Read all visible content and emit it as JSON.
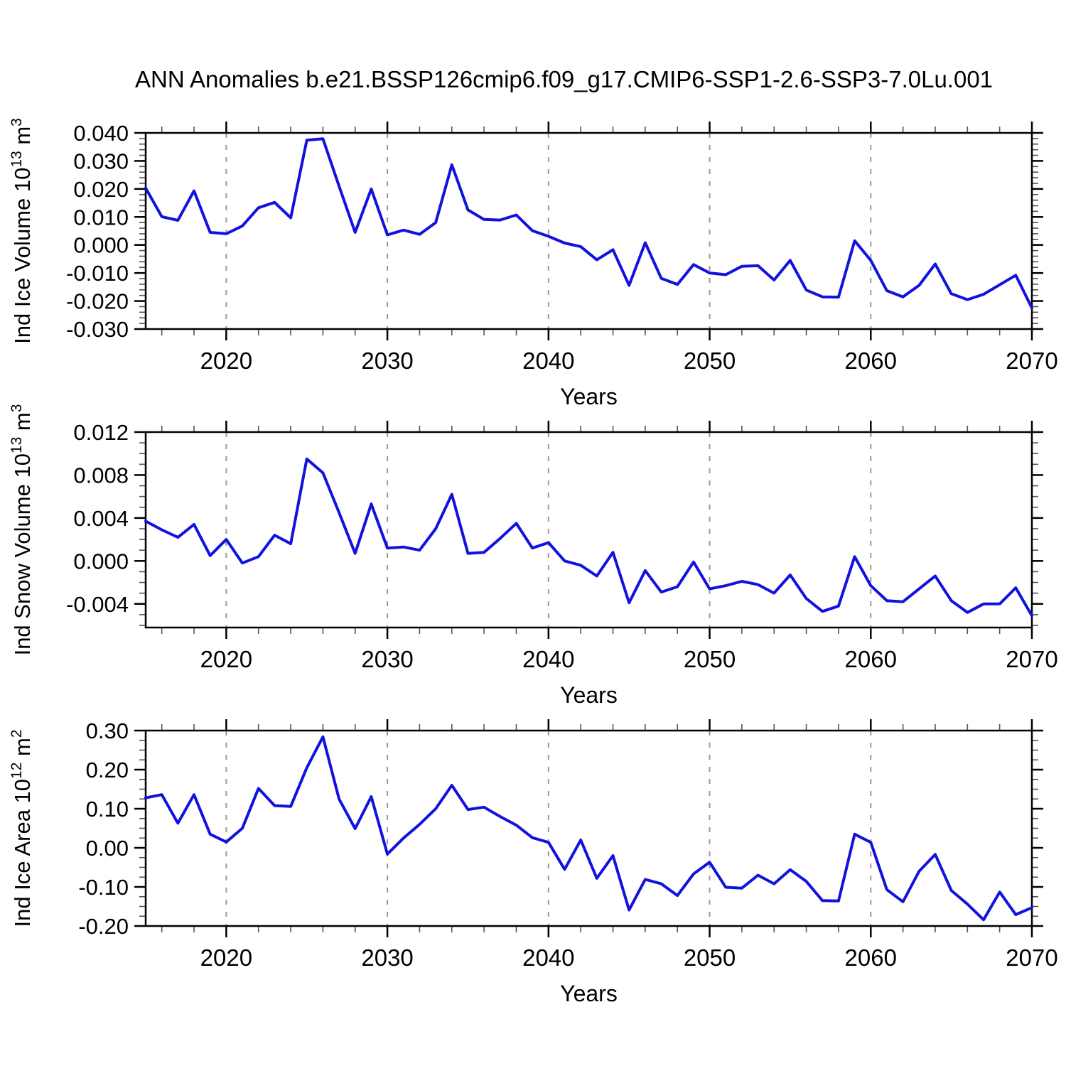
{
  "title": "ANN Anomalies b.e21.BSSP126cmip6.f09_g17.CMIP6-SSP1-2.6-SSP3-7.0Lu.001",
  "chart_data": {
    "type": "line",
    "line_color": "#1212e0",
    "grid_color": "#999999",
    "x": {
      "label": "Years",
      "min": 2015,
      "max": 2070,
      "major_ticks": [
        2020,
        2030,
        2040,
        2050,
        2060,
        2070
      ],
      "tick_labels": [
        "2020",
        "2030",
        "2040",
        "2050",
        "2060",
        "2070"
      ],
      "minor_step": 2,
      "gridlines": [
        2020,
        2030,
        2040,
        2050,
        2060
      ]
    },
    "years": [
      2015,
      2016,
      2017,
      2018,
      2019,
      2020,
      2021,
      2022,
      2023,
      2024,
      2025,
      2026,
      2027,
      2028,
      2029,
      2030,
      2031,
      2032,
      2033,
      2034,
      2035,
      2036,
      2037,
      2038,
      2039,
      2040,
      2041,
      2042,
      2043,
      2044,
      2045,
      2046,
      2047,
      2048,
      2049,
      2050,
      2051,
      2052,
      2053,
      2054,
      2055,
      2056,
      2057,
      2058,
      2059,
      2060,
      2061,
      2062,
      2063,
      2064,
      2065,
      2066,
      2067,
      2068,
      2069,
      2070
    ],
    "panels": [
      {
        "id": "ice-volume",
        "ylabel_plain": "Ind Ice Volume 10^13 m^3",
        "ylabel_parts": [
          {
            "t": "Ind Ice Volume 10",
            "sup": false
          },
          {
            "t": "13",
            "sup": true
          },
          {
            "t": " m",
            "sup": false
          },
          {
            "t": "3",
            "sup": true
          }
        ],
        "xlabel": "Years",
        "ymin": -0.03,
        "ymax": 0.04,
        "ytick_values": [
          0.04,
          0.03,
          0.02,
          0.01,
          0.0,
          -0.01,
          -0.02,
          -0.03
        ],
        "ytick_labels": [
          "0.040",
          "0.030",
          "0.020",
          "0.010",
          "0.000",
          "-0.010",
          "-0.020",
          "-0.030"
        ],
        "yminor_step": 0.002,
        "values": [
          0.0203,
          0.0101,
          0.0088,
          0.0193,
          0.0045,
          0.004,
          0.0068,
          0.0133,
          0.0152,
          0.0097,
          0.0374,
          0.0379,
          0.021,
          0.0045,
          0.02,
          0.0036,
          0.0053,
          0.0038,
          0.008,
          0.0286,
          0.0125,
          0.0091,
          0.0089,
          0.0107,
          0.0051,
          0.0031,
          0.0007,
          -0.0006,
          -0.0053,
          -0.0017,
          -0.0144,
          0.0008,
          -0.0119,
          -0.0141,
          -0.007,
          -0.01,
          -0.0106,
          -0.0076,
          -0.0074,
          -0.0125,
          -0.0055,
          -0.0161,
          -0.0185,
          -0.0186,
          0.0015,
          -0.0055,
          -0.0163,
          -0.0185,
          -0.0144,
          -0.0068,
          -0.0174,
          -0.0195,
          -0.0176,
          -0.0142,
          -0.0108,
          -0.0225
        ]
      },
      {
        "id": "snow-volume",
        "ylabel_plain": "Ind Snow Volume 10^13 m^3",
        "ylabel_parts": [
          {
            "t": "Ind Snow Volume 10",
            "sup": false
          },
          {
            "t": "13",
            "sup": true
          },
          {
            "t": " m",
            "sup": false
          },
          {
            "t": "3",
            "sup": true
          }
        ],
        "xlabel": "Years",
        "ymin": -0.0062,
        "ymax": 0.012,
        "ytick_values": [
          0.012,
          0.008,
          0.004,
          0.0,
          -0.004
        ],
        "ytick_labels": [
          "0.012",
          "0.008",
          "0.004",
          "0.000",
          "-0.004"
        ],
        "yminor_step": 0.001,
        "values": [
          0.0037,
          0.0029,
          0.0022,
          0.0034,
          0.0005,
          0.002,
          -0.0002,
          0.0004,
          0.0024,
          0.0016,
          0.0095,
          0.0082,
          0.0045,
          0.0007,
          0.0053,
          0.0012,
          0.0013,
          0.001,
          0.003,
          0.0062,
          0.0007,
          0.0008,
          0.0021,
          0.0035,
          0.0012,
          0.0017,
          0.0,
          -0.0004,
          -0.0014,
          0.0008,
          -0.0039,
          -0.0009,
          -0.0029,
          -0.0024,
          -0.0001,
          -0.0026,
          -0.0023,
          -0.0019,
          -0.0022,
          -0.003,
          -0.0013,
          -0.0035,
          -0.0047,
          -0.0042,
          0.0004,
          -0.0023,
          -0.0037,
          -0.0038,
          -0.0026,
          -0.0014,
          -0.0037,
          -0.0048,
          -0.004,
          -0.004,
          -0.0025,
          -0.0051
        ]
      },
      {
        "id": "ice-area",
        "ylabel_plain": "Ind Ice Area 10^12 m^2",
        "ylabel_parts": [
          {
            "t": "Ind Ice Area 10",
            "sup": false
          },
          {
            "t": "12",
            "sup": true
          },
          {
            "t": " m",
            "sup": false
          },
          {
            "t": "2",
            "sup": true
          }
        ],
        "xlabel": "Years",
        "ymin": -0.2,
        "ymax": 0.3,
        "ytick_values": [
          0.3,
          0.2,
          0.1,
          0.0,
          -0.1,
          -0.2
        ],
        "ytick_labels": [
          "0.30",
          "0.20",
          "0.10",
          "0.00",
          "-0.10",
          "-0.20"
        ],
        "yminor_step": 0.025,
        "values": [
          0.128,
          0.136,
          0.063,
          0.136,
          0.035,
          0.015,
          0.05,
          0.152,
          0.108,
          0.106,
          0.205,
          0.284,
          0.125,
          0.049,
          0.131,
          -0.016,
          0.025,
          0.06,
          0.1,
          0.16,
          0.098,
          0.104,
          0.08,
          0.058,
          0.026,
          0.014,
          -0.055,
          0.02,
          -0.078,
          -0.02,
          -0.159,
          -0.081,
          -0.092,
          -0.122,
          -0.067,
          -0.037,
          -0.101,
          -0.103,
          -0.07,
          -0.092,
          -0.056,
          -0.086,
          -0.135,
          -0.136,
          0.035,
          0.014,
          -0.107,
          -0.138,
          -0.06,
          -0.017,
          -0.109,
          -0.144,
          -0.184,
          -0.113,
          -0.171,
          -0.153
        ]
      }
    ]
  }
}
